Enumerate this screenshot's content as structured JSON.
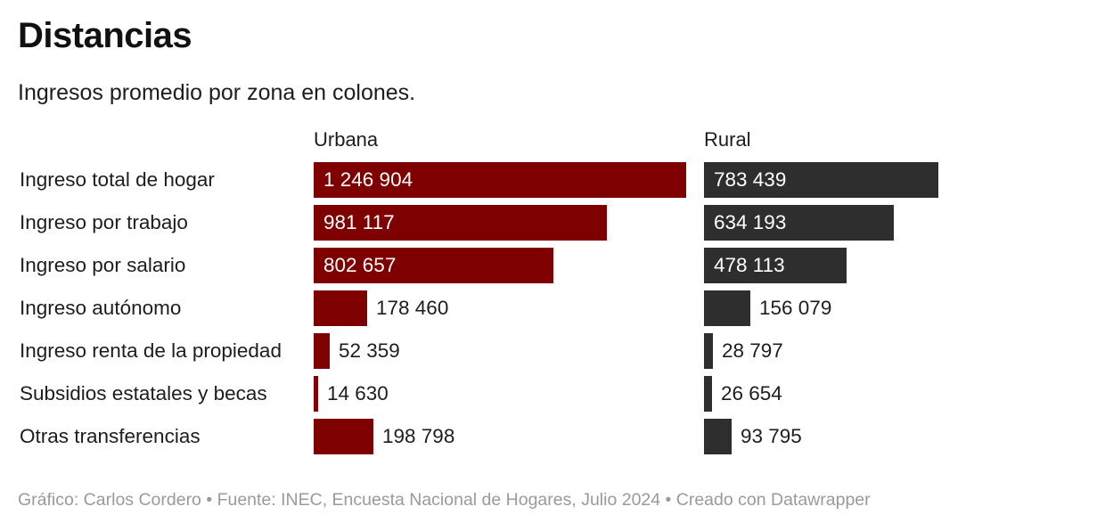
{
  "header": {
    "title": "Distancias",
    "subtitle": "Ingresos promedio por zona en colones."
  },
  "footer": {
    "credit": "Gráfico: Carlos Cordero • Fuente: INEC, Encuesta Nacional de Hogares, Julio 2024 • Creado con Datawrapper"
  },
  "chart_data": {
    "type": "bar",
    "orientation": "horizontal",
    "title": "Distancias",
    "subtitle": "Ingresos promedio por zona en colones.",
    "categories": [
      "Ingreso total de hogar",
      "Ingreso por trabajo",
      "Ingreso por salario",
      "Ingreso autónomo",
      "Ingreso renta de la propiedad",
      "Subsidios estatales y becas",
      "Otras transferencias"
    ],
    "series": [
      {
        "name": "Urbana",
        "color": "#7f0000",
        "values": [
          1246904,
          981117,
          802657,
          178460,
          52359,
          14630,
          198798
        ],
        "labels": [
          "1 246 904",
          "981 117",
          "802 657",
          "178 460",
          "52 359",
          "14 630",
          "198 798"
        ]
      },
      {
        "name": "Rural",
        "color": "#2e2e2e",
        "values": [
          783439,
          634193,
          478113,
          156079,
          28797,
          26654,
          93795
        ],
        "labels": [
          "783 439",
          "634 193",
          "478 113",
          "156 079",
          "28 797",
          "26 654",
          "93 795"
        ]
      }
    ],
    "xlabel": "",
    "ylabel": "",
    "xlim": [
      0,
      1246904
    ]
  }
}
